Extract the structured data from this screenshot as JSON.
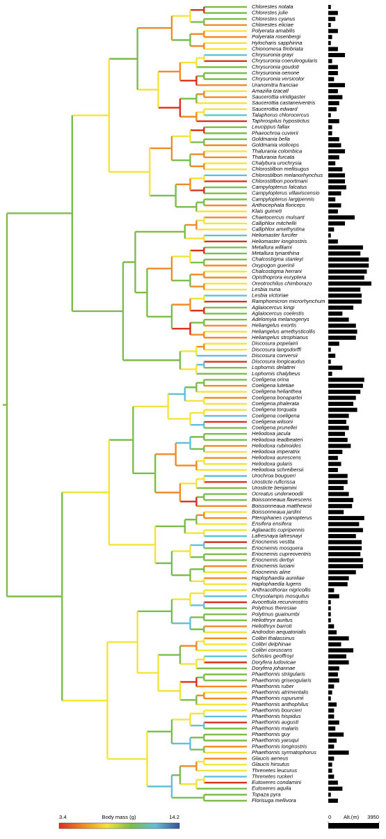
{
  "chart_data": {
    "type": "phylogeny-bar",
    "categories": [
      "Chlorestes notata",
      "Chlorestes julie",
      "Chlorestes cyanus",
      "Chlorestes eliciae",
      "Polyerata amabilis",
      "Polyerata rosenbergi",
      "Hylocharis sapphirina",
      "Chionomesa fimbriata",
      "Chrysuronia grayi",
      "Chrysuronia coeruleogularis",
      "Chrysuronia goudoti",
      "Chrysuronia oenone",
      "Chrysuronia versicolor",
      "Uranomitra franciae",
      "Amazilia tzacatl",
      "Saucerottia viridigaster",
      "Saucerottia castaneiventris",
      "Saucerottia edward",
      "Talaphorus chlorocercus",
      "Taphrospilus hypostictus",
      "Leucippus fallax",
      "Phaeochroa cuvierii",
      "Goldmania bella",
      "Goldmania violiceps",
      "Thalurania colombica",
      "Thalurania furcata",
      "Chalybura urochrysia",
      "Chlorostilbon mellisugus",
      "Chlorostilbon melanorhynchus",
      "Chlorostilbon poortmani",
      "Campylopterus falcatus",
      "Campylopterus villaviscensio",
      "Campylopterus largipennis",
      "Anthocephala floriceps",
      "Klais guimeti",
      "Chaetocercus mulsant",
      "Calliphlox mitchellii",
      "Calliphlox amethystina",
      "Heliomaster furcifer",
      "Heliomaster longirostris",
      "Metallura williami",
      "Metallura tyrianthina",
      "Chalcostigma stanleyi",
      "Oxypogon guerinii",
      "Chalcostigma herrani",
      "Opisthoprora euryptera",
      "Oreotrochilus chimborazo",
      "Lesbia nuna",
      "Lesbia victoriae",
      "Ramphomicron microrhynchum",
      "Aglaiocercus kingi",
      "Aglaiocercus coelestis",
      "Adelomyia melanogenys",
      "Heliangelus exortis",
      "Heliangelus amethysticollis",
      "Heliangelus strophianus",
      "Discosura popelairii",
      "Discosura langsdorffi",
      "Discosura conversii",
      "Discosura longicaudus",
      "Lophornis delattrei",
      "Lophornis chalybeus",
      "Coeligena orina",
      "Coeligena lutetiae",
      "Coeligena helianthea",
      "Coeligena bonapartei",
      "Coeligena phalerata",
      "Coeligena torquata",
      "Coeligena coeligena",
      "Coeligena wilsoni",
      "Coeligena prunellei",
      "Heliodoxa jacula",
      "Heliodoxa leadbeateri",
      "Heliodoxa rubinoides",
      "Heliodoxa imperatrix",
      "Heliodoxa aurescens",
      "Heliodoxa gularis",
      "Heliodoxa schreibersii",
      "Urochroa bougueri",
      "Urosticte ruficrissa",
      "Urosticte benjamini",
      "Ocreatus underwoodii",
      "Boissonneaua flavescens",
      "Boissonneaua matthewsii",
      "Boissonneaua jardini",
      "Pterophanes cyanopterus",
      "Ensifera ensifera",
      "Aglaeactis cupripennis",
      "Lafresnaya lafresnayi",
      "Eriocnemis vestita",
      "Eriocnemis mosquera",
      "Eriocnemis cupreoventris",
      "Eriocnemis derbyi",
      "Eriocnemis luciani",
      "Eriocnemis aline",
      "Haplophaedia aureliae",
      "Haplophaedia lugens",
      "Anthracothorax nigricollis",
      "Chrysolampis mosquitus",
      "Avocettula recurvirostris",
      "Polytmus theresiae",
      "Polytmus guainumbi",
      "Heliothryx auritus",
      "Heliothryx barroti",
      "Androdon aequatorialis",
      "Colibri thalassinus",
      "Colibri delphinae",
      "Colibri coruscans",
      "Schistes geoffroyi",
      "Doryfera ludovicae",
      "Doryfera johannae",
      "Phaethornis striigularis",
      "Phaethornis griseogularis",
      "Phaethornis ruber",
      "Phaethornis atrimentalis",
      "Phaethornis rupurumii",
      "Phaethornis anthophilus",
      "Phaethornis bourcieri",
      "Phaethornis hispidus",
      "Phaethornis augusti",
      "Phaethornis malaris",
      "Phaethornis guy",
      "Phaethornis yaruqui",
      "Phaethornis longirostris",
      "Phaethornis syrmatophorus",
      "Glaucis aeneus",
      "Glaucis hirsutus",
      "Threnetes leucurus",
      "Threnetes ruckeri",
      "Eutoxeres condamini",
      "Eutoxeres aquila",
      "Topaza pyra",
      "Florisuga mellivora"
    ],
    "values": [
      200,
      750,
      550,
      200,
      750,
      300,
      200,
      750,
      1300,
      300,
      750,
      750,
      450,
      1300,
      750,
      1100,
      850,
      650,
      200,
      850,
      300,
      300,
      850,
      1000,
      1300,
      850,
      550,
      1100,
      1300,
      1300,
      1400,
      1000,
      550,
      1000,
      750,
      2050,
      1300,
      450,
      200,
      750,
      2700,
      2500,
      3150,
      3150,
      3000,
      2800,
      3350,
      2500,
      2600,
      2600,
      1950,
      1100,
      1600,
      2150,
      2250,
      2150,
      850,
      200,
      550,
      200,
      1100,
      300,
      2800,
      2700,
      2500,
      2150,
      1950,
      2250,
      1600,
      1400,
      1600,
      1300,
      1500,
      1750,
      1100,
      750,
      1000,
      750,
      1500,
      1500,
      1200,
      1600,
      1950,
      1850,
      1200,
      2800,
      2400,
      2700,
      2150,
      2600,
      2600,
      2500,
      2700,
      2700,
      2150,
      1600,
      1500,
      450,
      850,
      200,
      200,
      200,
      200,
      450,
      650,
      1600,
      1000,
      1950,
      1400,
      1600,
      850,
      750,
      850,
      450,
      300,
      200,
      650,
      450,
      450,
      850,
      550,
      1200,
      650,
      450,
      1600,
      450,
      300,
      300,
      450,
      750,
      1100,
      200,
      750
    ],
    "color": "#000000",
    "xlabel": "Alt.(m)",
    "xlim": [
      0,
      3950
    ],
    "xticks": [
      0,
      3950
    ],
    "colorbar": {
      "label": "Body mass (g)",
      "min": 3.4,
      "max": 14.2,
      "colors": [
        "#d7301f",
        "#f08a24",
        "#f2e43a",
        "#7cbc4a",
        "#5fc0d8",
        "#3a4fa0"
      ]
    }
  }
}
